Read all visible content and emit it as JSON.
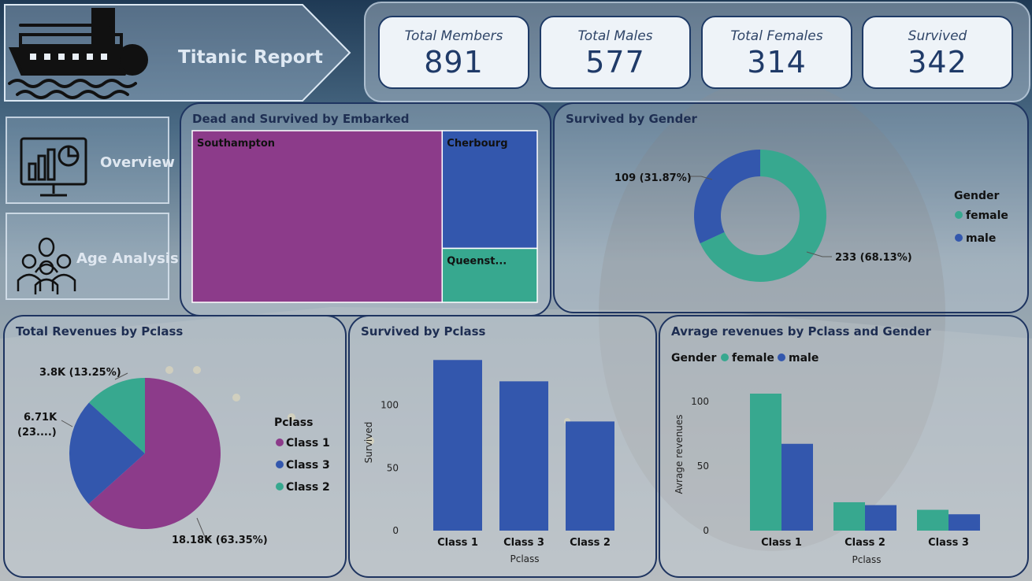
{
  "colors": {
    "female": "#37a88f",
    "male": "#3357ad",
    "class1": "#8c3b8a",
    "class3": "#3357ad",
    "class2": "#37a88f",
    "southampton": "#8c3b8a",
    "cherbourg": "#3357ad",
    "queenstown": "#37a88f",
    "panel_border": "#1e3460"
  },
  "header": {
    "title": "Titanic Report",
    "logo_icon": "titanic-ship-icon"
  },
  "kpis": [
    {
      "label": "Total Members",
      "value": "891"
    },
    {
      "label": "Total Males",
      "value": "577"
    },
    {
      "label": "Total Females",
      "value": "314"
    },
    {
      "label": "Survived",
      "value": "342"
    }
  ],
  "nav": [
    {
      "label": "Overview",
      "icon": "presentation-chart-icon"
    },
    {
      "label": "Age Analysis",
      "icon": "people-group-icon"
    }
  ],
  "chart_data": [
    {
      "id": "embarked",
      "type": "treemap",
      "title": "Dead and Survived by Embarked",
      "categories": [
        "Southampton",
        "Cherbourg",
        "Queenst..."
      ],
      "values": [
        644,
        168,
        77
      ]
    },
    {
      "id": "gender",
      "type": "pie",
      "title": "Survived by Gender",
      "legend_title": "Gender",
      "categories": [
        "female",
        "male"
      ],
      "values": [
        233,
        109
      ],
      "data_labels": [
        "233 (68.13%)",
        "109 (31.87%)"
      ],
      "legend_position": "right"
    },
    {
      "id": "revenues_pclass",
      "type": "pie",
      "title": "Total Revenues by Pclass",
      "legend_title": "Pclass",
      "categories": [
        "Class 1",
        "Class 3",
        "Class 2"
      ],
      "values": [
        18.18,
        6.71,
        3.8
      ],
      "data_labels": [
        "18.18K (63.35%)",
        "6.71K (23....)",
        "3.8K (13.25%)"
      ],
      "legend_position": "right"
    },
    {
      "id": "survived_pclass",
      "type": "bar",
      "title": "Survived by Pclass",
      "categories": [
        "Class 1",
        "Class 3",
        "Class 2"
      ],
      "values": [
        136,
        119,
        87
      ],
      "xlabel": "Pclass",
      "ylabel": "Survived",
      "yticks": [
        "0",
        "50",
        "100"
      ],
      "ylim": [
        0,
        140
      ]
    },
    {
      "id": "avg_revenue",
      "type": "bar",
      "title": "Avrage revenues by Pclass and Gender",
      "legend_title": "Gender",
      "categories": [
        "Class 1",
        "Class 2",
        "Class 3"
      ],
      "series": [
        {
          "name": "female",
          "values": [
            106.1,
            21.97,
            16.12
          ]
        },
        {
          "name": "male",
          "values": [
            67.23,
            19.74,
            12.66
          ]
        }
      ],
      "xlabel": "Pclass",
      "ylabel": "Avrage revenues",
      "yticks": [
        "0",
        "50",
        "100"
      ],
      "ylim": [
        0,
        120
      ],
      "legend_position": "top-left"
    }
  ]
}
